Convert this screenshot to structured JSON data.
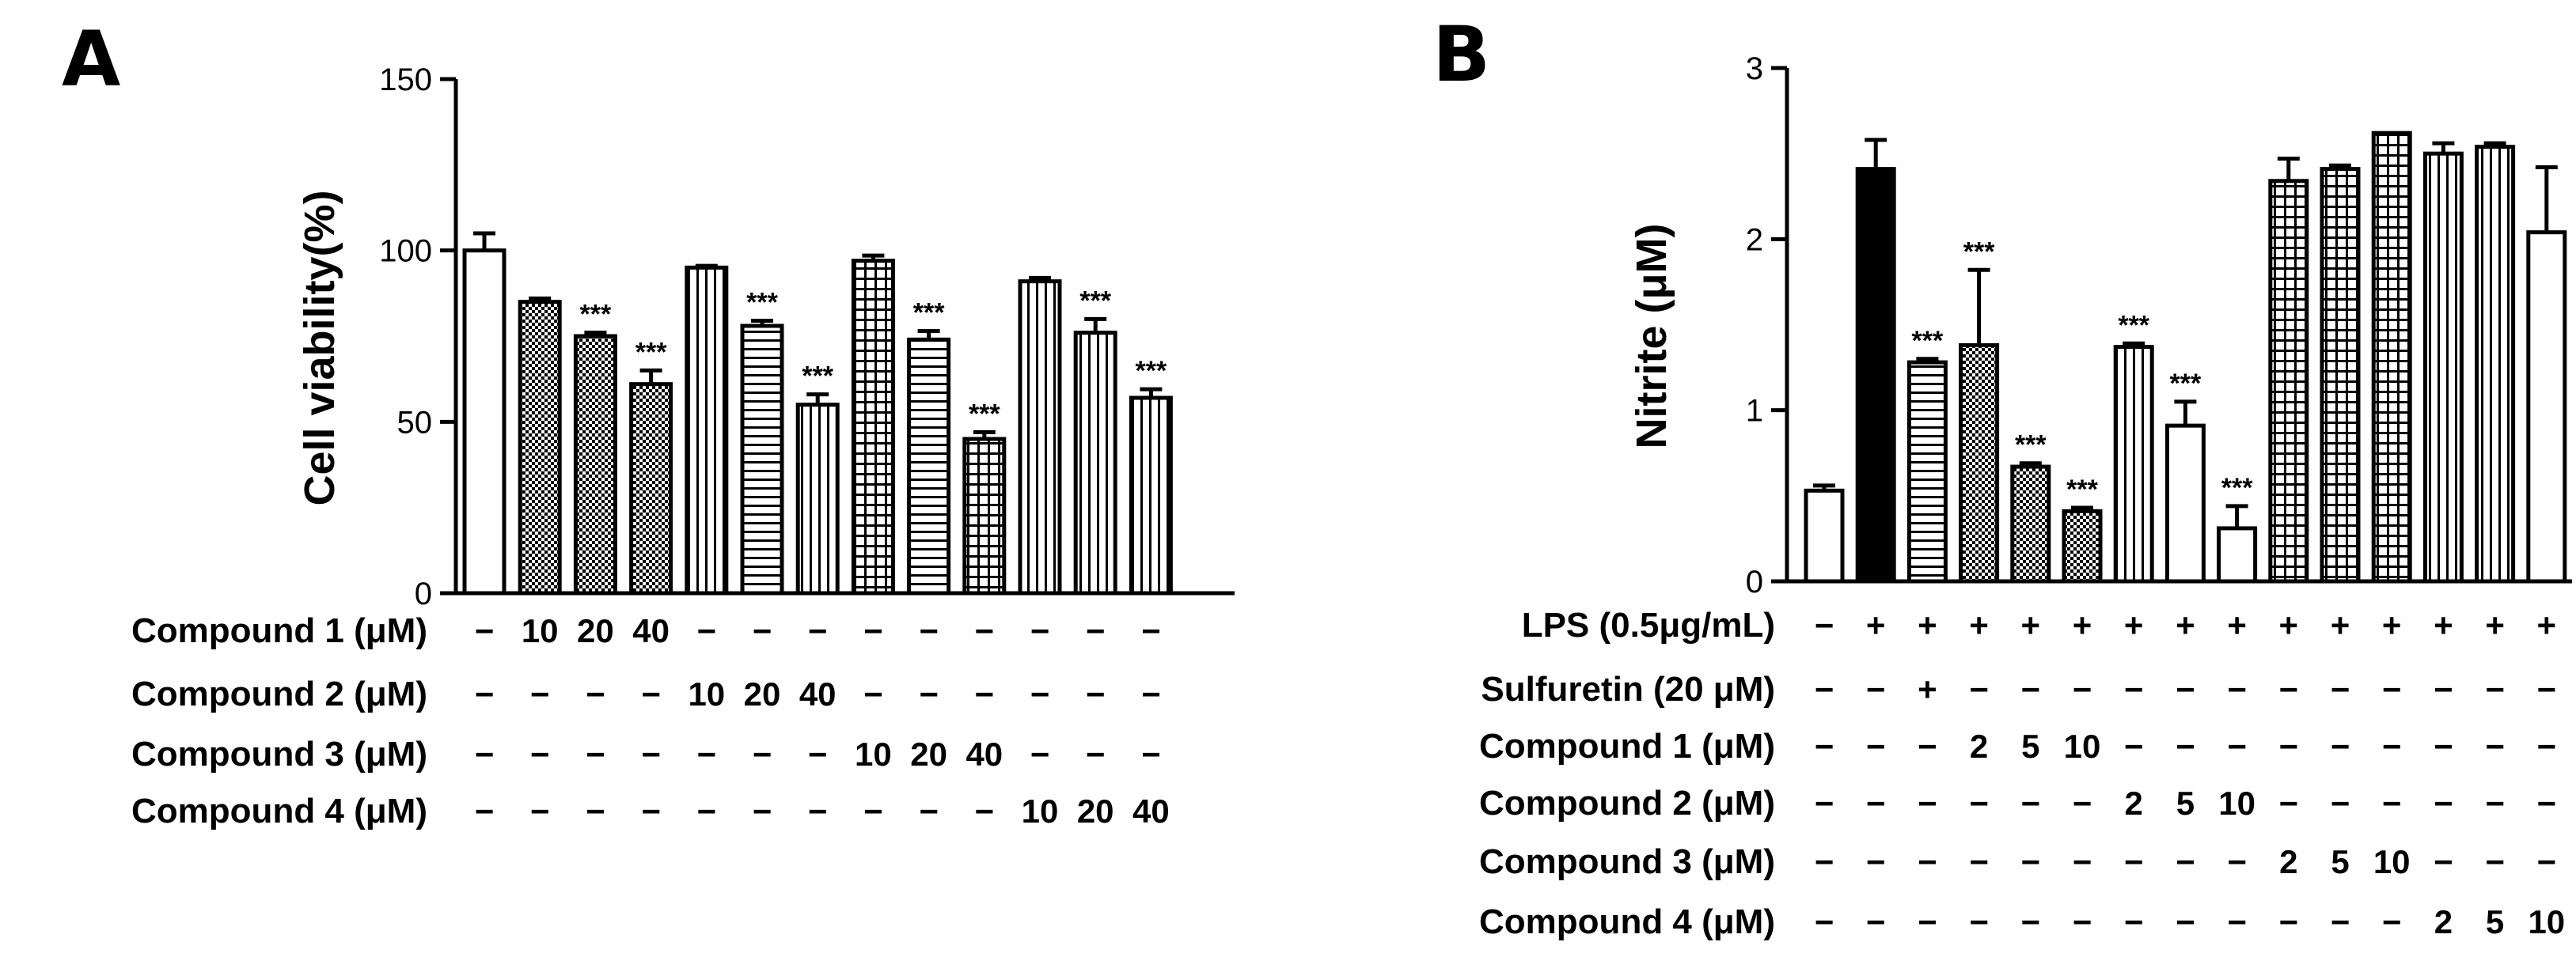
{
  "colors": {
    "ink": "#000000",
    "paper": "#ffffff"
  },
  "chart_data": [
    {
      "panel": "A",
      "type": "bar",
      "title": "",
      "xlabel": "",
      "ylabel": "Cell viability(%)",
      "ylim": [
        0,
        150
      ],
      "yticks": [
        0,
        50,
        100,
        150
      ],
      "grid": false,
      "legend": "none",
      "values": [
        100,
        85,
        75,
        61,
        95,
        78,
        55,
        97,
        74,
        45,
        91,
        76,
        57
      ],
      "errors": [
        5,
        1,
        1,
        4,
        0.5,
        1.5,
        3,
        1.5,
        2.5,
        2,
        1,
        4,
        2.5
      ],
      "patterns": [
        "white",
        "checker",
        "checker",
        "checker",
        "vlines",
        "hlines",
        "vlines",
        "grid",
        "hlines",
        "grid",
        "vlines",
        "vlines",
        "vlines"
      ],
      "significance": [
        "",
        "",
        "***",
        "***",
        "",
        "***",
        "***",
        "",
        "***",
        "***",
        "",
        "***",
        "***"
      ],
      "treatment_rows": [
        {
          "label": "Compound 1 (μM)",
          "cells": [
            "−",
            "10",
            "20",
            "40",
            "−",
            "−",
            "−",
            "−",
            "−",
            "−",
            "−",
            "−",
            "−"
          ]
        },
        {
          "label": "Compound 2 (μM)",
          "cells": [
            "−",
            "−",
            "−",
            "−",
            "10",
            "20",
            "40",
            "−",
            "−",
            "−",
            "−",
            "−",
            "−"
          ]
        },
        {
          "label": "Compound 3 (μM)",
          "cells": [
            "−",
            "−",
            "−",
            "−",
            "−",
            "−",
            "−",
            "10",
            "20",
            "40",
            "−",
            "−",
            "−"
          ]
        },
        {
          "label": "Compound 4 (μM)",
          "cells": [
            "−",
            "−",
            "−",
            "−",
            "−",
            "−",
            "−",
            "−",
            "−",
            "−",
            "10",
            "20",
            "40"
          ]
        }
      ]
    },
    {
      "panel": "B",
      "type": "bar",
      "title": "",
      "xlabel": "",
      "ylabel": "Nitrite (μM)",
      "ylim": [
        0,
        3
      ],
      "yticks": [
        0,
        1,
        2,
        3
      ],
      "grid": false,
      "legend": "none",
      "values": [
        0.53,
        2.41,
        1.28,
        1.38,
        0.67,
        0.41,
        1.37,
        0.91,
        0.31,
        2.34,
        2.41,
        2.62,
        2.5,
        2.54,
        2.04
      ],
      "errors": [
        0.03,
        0.17,
        0.02,
        0.44,
        0.02,
        0.02,
        0.02,
        0.14,
        0.13,
        0.13,
        0.02,
        0.0,
        0.06,
        0.02,
        0.38
      ],
      "patterns": [
        "white",
        "black",
        "hlines",
        "checker",
        "checker",
        "checker",
        "vlines",
        "white",
        "white",
        "grid",
        "grid",
        "grid",
        "vlines",
        "vlines",
        "white"
      ],
      "significance": [
        "",
        "",
        "***",
        "***",
        "***",
        "***",
        "***",
        "***",
        "***",
        "",
        "",
        "",
        "",
        "",
        ""
      ],
      "treatment_rows": [
        {
          "label": "LPS (0.5μg/mL)",
          "cells": [
            "−",
            "+",
            "+",
            "+",
            "+",
            "+",
            "+",
            "+",
            "+",
            "+",
            "+",
            "+",
            "+",
            "+",
            "+"
          ]
        },
        {
          "label": "Sulfuretin (20 μM)",
          "cells": [
            "−",
            "−",
            "+",
            "−",
            "−",
            "−",
            "−",
            "−",
            "−",
            "−",
            "−",
            "−",
            "−",
            "−",
            "−"
          ]
        },
        {
          "label": "Compound 1 (μM)",
          "cells": [
            "−",
            "−",
            "−",
            "2",
            "5",
            "10",
            "−",
            "−",
            "−",
            "−",
            "−",
            "−",
            "−",
            "−",
            "−"
          ]
        },
        {
          "label": "Compound 2 (μM)",
          "cells": [
            "−",
            "−",
            "−",
            "−",
            "−",
            "−",
            "2",
            "5",
            "10",
            "−",
            "−",
            "−",
            "−",
            "−",
            "−"
          ]
        },
        {
          "label": "Compound 3 (μM)",
          "cells": [
            "−",
            "−",
            "−",
            "−",
            "−",
            "−",
            "−",
            "−",
            "−",
            "2",
            "5",
            "10",
            "−",
            "−",
            "−"
          ]
        },
        {
          "label": "Compound 4 (μM)",
          "cells": [
            "−",
            "−",
            "−",
            "−",
            "−",
            "−",
            "−",
            "−",
            "−",
            "−",
            "−",
            "−",
            "2",
            "5",
            "10"
          ]
        }
      ]
    }
  ]
}
